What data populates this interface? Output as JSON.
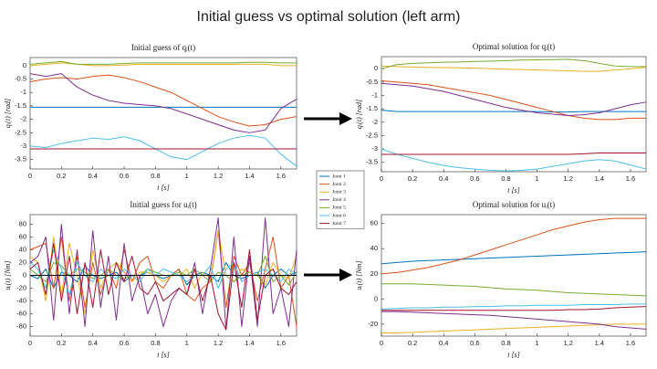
{
  "title": "Initial guess vs optimal solution (left arm)",
  "chart_data": [
    {
      "type": "line",
      "title": "Initial guess of qᵢ(t)",
      "xlabel": "t [s]",
      "ylabel": "qᵢ(t) [rad]",
      "x": [
        0,
        0.1,
        0.2,
        0.3,
        0.4,
        0.5,
        0.6,
        0.7,
        0.8,
        0.9,
        1,
        1.1,
        1.2,
        1.3,
        1.4,
        1.5,
        1.6,
        1.7
      ],
      "xlim": [
        0,
        1.7
      ],
      "xticks": [
        0,
        0.2,
        0.4,
        0.6,
        0.8,
        1,
        1.2,
        1.4,
        1.6
      ],
      "ylim": [
        -3.85,
        0.3
      ],
      "yticks": [
        0,
        -0.5,
        -1,
        -1.5,
        -2,
        -2.5,
        -3,
        -3.5
      ],
      "series": [
        {
          "name": "Joint 1",
          "color": "#0072BD",
          "values": [
            -1.55,
            -1.55,
            -1.55,
            -1.55,
            -1.55,
            -1.55,
            -1.55,
            -1.55,
            -1.55,
            -1.55,
            -1.55,
            -1.55,
            -1.55,
            -1.55,
            -1.55,
            -1.55,
            -1.55,
            -1.55
          ]
        },
        {
          "name": "Joint 2",
          "color": "#D95319",
          "values": [
            -0.6,
            -0.5,
            -0.45,
            -0.5,
            -0.4,
            -0.35,
            -0.45,
            -0.6,
            -0.8,
            -1.0,
            -1.3,
            -1.6,
            -1.9,
            -2.1,
            -2.25,
            -2.2,
            -2.0,
            -1.9
          ]
        },
        {
          "name": "Joint 3",
          "color": "#EDB120",
          "values": [
            0,
            0.05,
            0.1,
            0.05,
            0,
            0,
            0.02,
            0.05,
            0.05,
            0.05,
            0.05,
            0.05,
            0.05,
            0.05,
            0.05,
            0.05,
            0,
            0
          ]
        },
        {
          "name": "Joint 4",
          "color": "#7E2F8E",
          "values": [
            -0.3,
            -0.4,
            -0.3,
            -0.8,
            -1.1,
            -1.3,
            -1.4,
            -1.45,
            -1.5,
            -1.6,
            -1.8,
            -2.0,
            -2.2,
            -2.4,
            -2.5,
            -2.4,
            -1.6,
            -1.25
          ]
        },
        {
          "name": "Joint 5",
          "color": "#77AC30",
          "values": [
            0.05,
            0.1,
            0.15,
            0.05,
            0.05,
            0.05,
            0.08,
            0.1,
            0.1,
            0.1,
            0.1,
            0.1,
            0.1,
            0.1,
            0.12,
            0.12,
            0.1,
            0.1
          ]
        },
        {
          "name": "Joint 6",
          "color": "#4DBEEE",
          "values": [
            -3.0,
            -3.05,
            -2.9,
            -2.8,
            -2.7,
            -2.75,
            -2.65,
            -2.8,
            -3.1,
            -3.4,
            -3.5,
            -3.2,
            -2.9,
            -2.7,
            -2.6,
            -2.7,
            -3.3,
            -3.75
          ]
        },
        {
          "name": "Joint 7",
          "color": "#A2142F",
          "values": [
            -3.1,
            -3.1,
            -3.1,
            -3.1,
            -3.1,
            -3.1,
            -3.1,
            -3.1,
            -3.1,
            -3.1,
            -3.1,
            -3.1,
            -3.1,
            -3.1,
            -3.1,
            -3.1,
            -3.1,
            -3.1
          ]
        }
      ]
    },
    {
      "type": "line",
      "title": "Optimal solution for qᵢ(t)",
      "xlabel": "t [s]",
      "ylabel": "qᵢ(t) [rad]",
      "x": [
        0,
        0.1,
        0.2,
        0.3,
        0.4,
        0.5,
        0.6,
        0.7,
        0.8,
        0.9,
        1,
        1.1,
        1.2,
        1.3,
        1.4,
        1.5,
        1.6,
        1.7
      ],
      "xlim": [
        0,
        1.7
      ],
      "xticks": [
        0,
        0.2,
        0.4,
        0.6,
        0.8,
        1,
        1.2,
        1.4,
        1.6
      ],
      "ylim": [
        -3.85,
        0.45
      ],
      "yticks": [
        0,
        -0.5,
        -1,
        -1.5,
        -2,
        -2.5,
        -3,
        -3.5
      ],
      "series": [
        {
          "color": "#0072BD",
          "values": [
            -1.55,
            -1.6,
            -1.6,
            -1.6,
            -1.6,
            -1.6,
            -1.6,
            -1.6,
            -1.6,
            -1.6,
            -1.6,
            -1.62,
            -1.62,
            -1.6,
            -1.6,
            -1.6,
            -1.6,
            -1.6
          ]
        },
        {
          "color": "#D95319",
          "values": [
            -0.45,
            -0.5,
            -0.55,
            -0.6,
            -0.7,
            -0.8,
            -0.9,
            -1.0,
            -1.15,
            -1.3,
            -1.45,
            -1.6,
            -1.75,
            -1.85,
            -1.9,
            -1.9,
            -1.85,
            -1.85
          ]
        },
        {
          "color": "#EDB120",
          "values": [
            0.1,
            0.08,
            0.06,
            0.05,
            0.04,
            0.03,
            0.02,
            0.0,
            -0.02,
            -0.03,
            -0.05,
            -0.06,
            -0.08,
            -0.1,
            -0.1,
            -0.05,
            0.0,
            0.05
          ]
        },
        {
          "color": "#7E2F8E",
          "values": [
            -0.55,
            -0.6,
            -0.65,
            -0.75,
            -0.85,
            -1.0,
            -1.15,
            -1.3,
            -1.45,
            -1.55,
            -1.65,
            -1.7,
            -1.75,
            -1.72,
            -1.65,
            -1.5,
            -1.35,
            -1.25
          ]
        },
        {
          "color": "#77AC30",
          "values": [
            0,
            0.15,
            0.2,
            0.22,
            0.24,
            0.25,
            0.27,
            0.28,
            0.3,
            0.32,
            0.33,
            0.34,
            0.35,
            0.3,
            0.2,
            0.1,
            0.08,
            0.08
          ]
        },
        {
          "color": "#4DBEEE",
          "values": [
            -3.0,
            -3.2,
            -3.35,
            -3.5,
            -3.62,
            -3.7,
            -3.75,
            -3.8,
            -3.82,
            -3.8,
            -3.75,
            -3.65,
            -3.55,
            -3.45,
            -3.4,
            -3.45,
            -3.6,
            -3.75
          ]
        },
        {
          "color": "#A2142F",
          "values": [
            -3.2,
            -3.2,
            -3.2,
            -3.2,
            -3.2,
            -3.2,
            -3.2,
            -3.2,
            -3.2,
            -3.2,
            -3.2,
            -3.2,
            -3.2,
            -3.18,
            -3.15,
            -3.15,
            -3.15,
            -3.15
          ]
        }
      ]
    },
    {
      "type": "line",
      "title": "Initial guess for uᵢ(t)",
      "xlabel": "t [s]",
      "ylabel": "uᵢ(t) [Nm]",
      "zero_line": true,
      "x": [
        0,
        0.05,
        0.1,
        0.15,
        0.2,
        0.25,
        0.3,
        0.35,
        0.4,
        0.45,
        0.5,
        0.55,
        0.6,
        0.65,
        0.7,
        0.75,
        0.8,
        0.85,
        0.9,
        0.95,
        1,
        1.05,
        1.1,
        1.15,
        1.2,
        1.25,
        1.3,
        1.35,
        1.4,
        1.45,
        1.5,
        1.55,
        1.6,
        1.65,
        1.7
      ],
      "xlim": [
        0,
        1.7
      ],
      "xticks": [
        0,
        0.2,
        0.4,
        0.6,
        0.8,
        1,
        1.2,
        1.4,
        1.6
      ],
      "ylim": [
        -95,
        95
      ],
      "yticks": [
        -80,
        -60,
        -40,
        -20,
        0,
        20,
        40,
        60,
        80
      ],
      "series": [
        {
          "color": "#0072BD",
          "values": [
            0,
            -5,
            10,
            -20,
            5,
            0,
            -10,
            15,
            0,
            -5,
            0,
            5,
            -10,
            0,
            0,
            5,
            0,
            -5,
            0,
            10,
            -15,
            0,
            5,
            0,
            -10,
            20,
            0,
            -5,
            0,
            5,
            -20,
            0,
            10,
            0,
            5
          ]
        },
        {
          "color": "#D95319",
          "values": [
            40,
            45,
            50,
            -20,
            60,
            -40,
            30,
            -50,
            20,
            -30,
            10,
            -20,
            40,
            -10,
            20,
            30,
            -10,
            -20,
            0,
            10,
            -30,
            -40,
            -20,
            -10,
            70,
            -50,
            30,
            0,
            20,
            -40,
            10,
            60,
            -20,
            0,
            -80
          ]
        },
        {
          "color": "#EDB120",
          "values": [
            30,
            20,
            -40,
            60,
            -30,
            50,
            0,
            -60,
            40,
            -20,
            10,
            20,
            5,
            -10,
            5,
            5,
            0,
            -10,
            0,
            0,
            10,
            -20,
            5,
            -5,
            70,
            0,
            -10,
            10,
            5,
            0,
            -15,
            20,
            0,
            -5,
            30
          ]
        },
        {
          "color": "#7E2F8E",
          "values": [
            20,
            30,
            60,
            -70,
            80,
            -60,
            40,
            -80,
            70,
            -50,
            30,
            -70,
            50,
            -40,
            0,
            -60,
            -30,
            -80,
            -40,
            -20,
            -30,
            20,
            -60,
            10,
            90,
            -85,
            60,
            -80,
            30,
            -80,
            90,
            -60,
            -20,
            -80,
            40
          ]
        },
        {
          "color": "#77AC30",
          "values": [
            10,
            0,
            -10,
            20,
            15,
            0,
            10,
            5,
            -5,
            0,
            10,
            0,
            -5,
            0,
            0,
            10,
            5,
            0,
            0,
            5,
            0,
            10,
            0,
            -10,
            5,
            0,
            -10,
            0,
            5,
            0,
            30,
            -10,
            0,
            -15,
            5
          ]
        },
        {
          "color": "#4DBEEE",
          "values": [
            20,
            10,
            -20,
            40,
            10,
            -30,
            20,
            0,
            -10,
            10,
            0,
            -5,
            10,
            0,
            -10,
            10,
            0,
            10,
            5,
            0,
            -10,
            0,
            0,
            15,
            -20,
            10,
            20,
            -10,
            0,
            5,
            10,
            0,
            -10,
            10,
            0
          ]
        },
        {
          "color": "#A2142F",
          "values": [
            10,
            20,
            -30,
            50,
            -40,
            30,
            -60,
            20,
            -50,
            40,
            -30,
            20,
            -10,
            30,
            -20,
            -30,
            -10,
            -40,
            -30,
            -20,
            -30,
            10,
            -40,
            0,
            -60,
            -85,
            20,
            -50,
            40,
            -70,
            0,
            10,
            -20,
            -30,
            -10
          ]
        }
      ]
    },
    {
      "type": "line",
      "title": "Optimal solution for uᵢ(t)",
      "xlabel": "t [s]",
      "ylabel": "uᵢ(t) [Nm]",
      "x": [
        0,
        0.1,
        0.2,
        0.3,
        0.4,
        0.5,
        0.6,
        0.7,
        0.8,
        0.9,
        1,
        1.1,
        1.2,
        1.3,
        1.4,
        1.5,
        1.6,
        1.7
      ],
      "xlim": [
        0,
        1.7
      ],
      "xticks": [
        0,
        0.2,
        0.4,
        0.6,
        0.8,
        1,
        1.2,
        1.4,
        1.6
      ],
      "ylim": [
        -29.5,
        67
      ],
      "yticks": [
        -20,
        0,
        20,
        40,
        60
      ],
      "series": [
        {
          "color": "#0072BD",
          "values": [
            28,
            29,
            30,
            30.5,
            31,
            31.5,
            32,
            32.5,
            33,
            33.5,
            34,
            34.5,
            35,
            35.5,
            36,
            36.5,
            37,
            37.5
          ]
        },
        {
          "color": "#D95319",
          "values": [
            20,
            21,
            23,
            25,
            28,
            31,
            35,
            39,
            43,
            47,
            51,
            55,
            58,
            61,
            63,
            64,
            64,
            64
          ]
        },
        {
          "color": "#EDB120",
          "values": [
            -27,
            -27,
            -26.5,
            -26,
            -25.5,
            -25,
            -24.5,
            -24,
            -23.5,
            -23,
            -22.5,
            -22,
            -21.5,
            -21,
            -20.5,
            -20,
            -20,
            -20
          ]
        },
        {
          "color": "#7E2F8E",
          "values": [
            -10,
            -10,
            -10.5,
            -11,
            -11.5,
            -12,
            -12.5,
            -13,
            -14,
            -15,
            -16,
            -17,
            -18,
            -19,
            -20,
            -22,
            -23,
            -24
          ]
        },
        {
          "color": "#77AC30",
          "values": [
            12,
            12,
            12,
            11.5,
            11,
            10.5,
            10,
            9,
            8,
            7.5,
            7,
            6,
            5,
            4.5,
            4,
            3.5,
            3,
            2.5
          ]
        },
        {
          "color": "#4DBEEE",
          "values": [
            -8,
            -7.5,
            -7,
            -7,
            -6.5,
            -6.5,
            -6,
            -6,
            -5.5,
            -5.5,
            -5,
            -5,
            -5,
            -4.5,
            -4.5,
            -4.5,
            -4,
            -4
          ]
        },
        {
          "color": "#A2142F",
          "values": [
            -9,
            -9,
            -9,
            -9,
            -9,
            -9,
            -9,
            -9,
            -9,
            -9,
            -9,
            -9,
            -8.5,
            -8.5,
            -8,
            -7,
            -6.5,
            -6
          ]
        }
      ]
    }
  ]
}
